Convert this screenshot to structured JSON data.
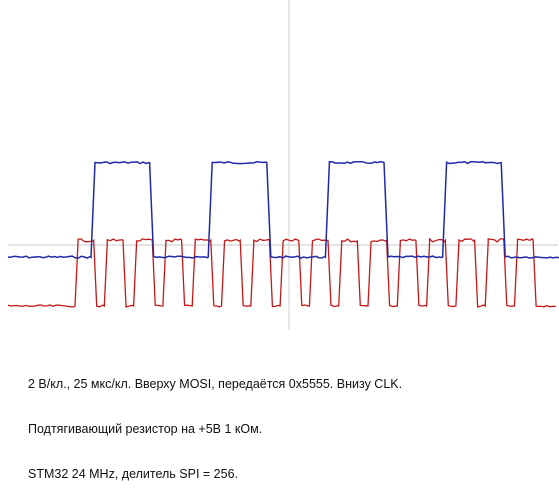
{
  "chart_data": {
    "type": "line",
    "grid": true,
    "x_div_us": 25,
    "y_div_v": 2,
    "series": [
      {
        "name": "MOSI",
        "color": "#1f2aa8",
        "levels_div": {
          "low": -0.52,
          "high": 3.55
        },
        "bits": [
          0,
          1,
          0,
          1,
          0,
          1,
          0,
          1,
          0,
          1,
          0,
          1,
          0,
          1,
          0,
          1,
          0
        ]
      },
      {
        "name": "CLK",
        "color": "#c41818",
        "levels_div": {
          "low": -2.63,
          "high": 0.2
        },
        "pulses": 16
      }
    ]
  },
  "caption": {
    "line1": "2 В/кл., 25 мкс/кл. Вверху MOSI, передаётся 0x5555. Внизу CLK.",
    "line2": "Подтягивающий резистор на +5В 1 кОм.",
    "line3": "STM32 24 MHz, делитель SPI = 256."
  }
}
